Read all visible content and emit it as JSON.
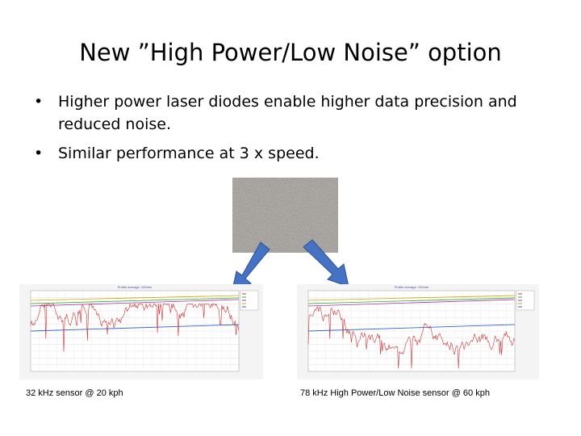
{
  "slide": {
    "title": "New ”High Power/Low Noise” option",
    "bullets": [
      "Higher power laser diodes enable higher data precision and reduced noise.",
      "Similar performance at 3 x speed."
    ],
    "bullet_glyph": "•"
  },
  "images": {
    "surface_photo_icon": "gravel-texture",
    "arrow_color": "#4472c4"
  },
  "figures": [
    {
      "chart_title": "Profile average: 100mm",
      "caption": "32 kHz sensor @ 20 kph"
    },
    {
      "chart_title": "Profile average: 100mm",
      "caption": "78 kHz High Power/Low Noise  sensor @ 60 kph"
    }
  ]
}
